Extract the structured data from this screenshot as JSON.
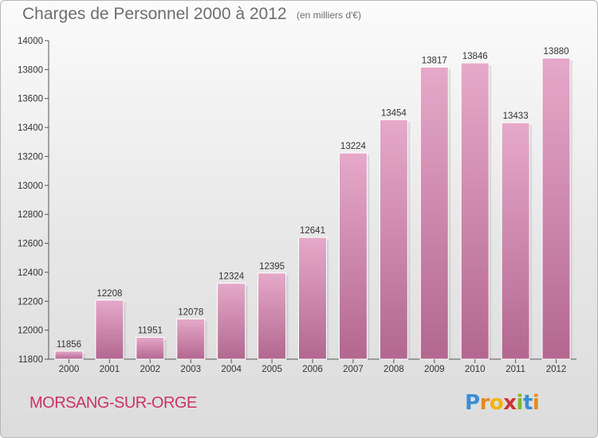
{
  "header": {
    "title": "Charges de Personnel 2000 à 2012",
    "subtitle": "(en milliers d'€)"
  },
  "footer": {
    "town": "MORSANG-SUR-ORGE",
    "logo": "Proxiti"
  },
  "colors": {
    "bar_light": "#e6a9ca",
    "bar_dark": "#b3678f",
    "town": "#cc3366",
    "title": "#6e6e6e"
  },
  "chart_data": {
    "type": "bar",
    "title": "Charges de Personnel 2000 à 2012",
    "subtitle": "(en milliers d'€)",
    "categories": [
      "2000",
      "2001",
      "2002",
      "2003",
      "2004",
      "2005",
      "2006",
      "2007",
      "2008",
      "2009",
      "2010",
      "2011",
      "2012"
    ],
    "values": [
      11856,
      12208,
      11951,
      12078,
      12324,
      12395,
      12641,
      13224,
      13454,
      13817,
      13846,
      13433,
      13880
    ],
    "data_labels": [
      "11856",
      "12208",
      "11951",
      "12078",
      "12324",
      "12395",
      "12641",
      "13224",
      "13454",
      "13817",
      "13846",
      "13433",
      "13880"
    ],
    "ylim": [
      11800,
      14000
    ],
    "yticks": [
      11800,
      12000,
      12200,
      12400,
      12600,
      12800,
      13000,
      13200,
      13400,
      13600,
      13800,
      14000
    ],
    "grid": false,
    "legend": "none"
  }
}
